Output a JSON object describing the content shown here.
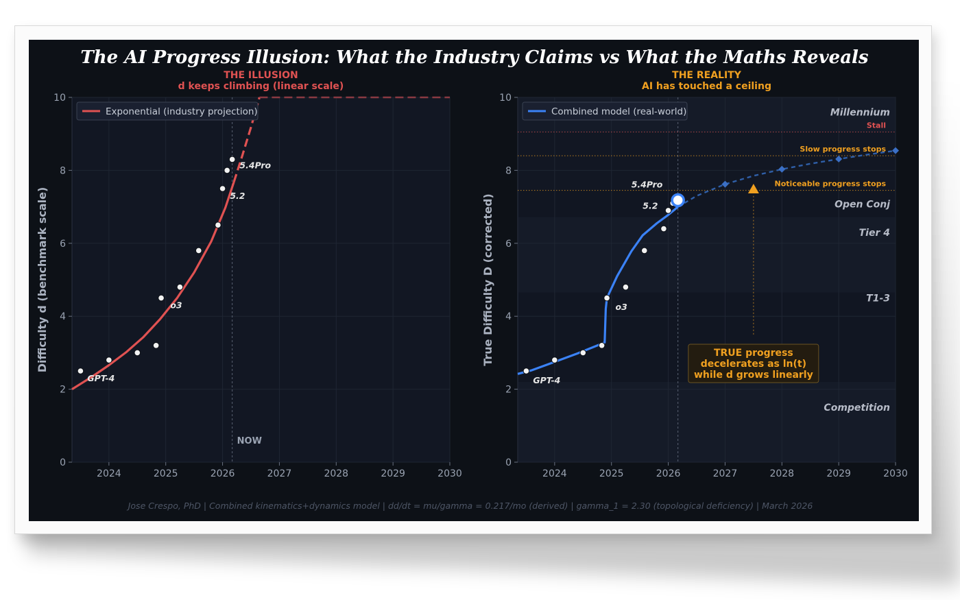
{
  "title": "The AI Progress Illusion: What the Industry Claims vs What the Maths Reveals",
  "footer": "Jose Crespo, PhD  |  Combined kinematics+dynamics model  |  dd/dt = mu/gamma = 0.217/mo (derived)  |  gamma_1 = 2.30 (topological deficiency)  |  March 2026",
  "colors": {
    "illusion": "#e05252",
    "reality": "#f0a020",
    "blue": "#3b82f6",
    "bg": "#0d1117",
    "axes": "#121723"
  },
  "chart_data": [
    {
      "type": "line",
      "subtitle_1": "THE ILLUSION",
      "subtitle_2": "d keeps climbing (linear scale)",
      "xlabel": "",
      "ylabel": "Difficulty d (benchmark scale)",
      "xlim": [
        2023.35,
        2030
      ],
      "ylim": [
        0,
        10
      ],
      "xticks": [
        2024,
        2025,
        2026,
        2027,
        2028,
        2029,
        2030
      ],
      "yticks": [
        0,
        2,
        4,
        6,
        8,
        10
      ],
      "legend": "top-left",
      "now_x": 2026.17,
      "now_label": "NOW",
      "series": [
        {
          "name": "Exponential (industry projection)",
          "solid_x": [
            2023.35,
            2023.7,
            2024.0,
            2024.3,
            2024.6,
            2024.9,
            2025.2,
            2025.5,
            2025.8,
            2026.05,
            2026.2
          ],
          "solid_y": [
            2.0,
            2.34,
            2.66,
            3.01,
            3.42,
            3.92,
            4.5,
            5.2,
            6.05,
            6.98,
            7.68
          ],
          "dashed_x": [
            2026.2,
            2026.35,
            2026.5,
            2026.65
          ],
          "dashed_y": [
            7.68,
            8.42,
            9.18,
            10.0
          ],
          "ceiling_x": [
            2026.65,
            2030
          ],
          "ceiling_y": [
            10,
            10
          ]
        }
      ],
      "points": {
        "x": [
          2023.5,
          2024.0,
          2024.5,
          2024.83,
          2024.92,
          2025.25,
          2025.58,
          2025.92,
          2026.0,
          2026.08,
          2026.17
        ],
        "y": [
          2.5,
          2.8,
          3.0,
          3.2,
          4.5,
          4.8,
          5.8,
          6.5,
          7.5,
          8.0,
          8.3
        ]
      },
      "annotations": [
        {
          "text": "GPT-4",
          "x": 2023.62,
          "y": 2.22
        },
        {
          "text": "o3",
          "x": 2025.08,
          "y": 4.22
        },
        {
          "text": "5.2",
          "x": 2026.13,
          "y": 7.22
        },
        {
          "text": "5.4Pro",
          "x": 2026.3,
          "y": 8.05
        }
      ]
    },
    {
      "type": "line",
      "subtitle_1": "THE REALITY",
      "subtitle_2": "AI has touched a ceiling",
      "xlabel": "",
      "ylabel": "True Difficulty D (corrected)",
      "xlim": [
        2023.35,
        2030
      ],
      "ylim": [
        0,
        10
      ],
      "xticks": [
        2024,
        2025,
        2026,
        2027,
        2028,
        2029,
        2030
      ],
      "yticks": [
        0,
        2,
        4,
        6,
        8,
        10
      ],
      "legend": "top-left",
      "now_x": 2026.17,
      "series": [
        {
          "name": "Combined model (real-world)",
          "solid_x": [
            2023.35,
            2023.6,
            2024.0,
            2024.4,
            2024.88,
            2024.9,
            2024.92,
            2025.1,
            2025.35,
            2025.55,
            2025.8,
            2026.0,
            2026.17
          ],
          "solid_y": [
            2.42,
            2.52,
            2.75,
            2.98,
            3.28,
            4.2,
            4.5,
            5.1,
            5.78,
            6.22,
            6.55,
            6.78,
            7.0
          ],
          "dashed_x": [
            2026.17,
            2026.5,
            2027.0,
            2027.5,
            2028.0,
            2028.5,
            2029.0,
            2029.5,
            2030.0
          ],
          "dashed_y": [
            7.0,
            7.3,
            7.62,
            7.85,
            8.03,
            8.18,
            8.31,
            8.43,
            8.54
          ],
          "markers_x": [
            2027,
            2028,
            2029,
            2030
          ],
          "markers_y": [
            7.62,
            8.03,
            8.31,
            8.54
          ]
        }
      ],
      "points": {
        "x": [
          2023.5,
          2024.0,
          2024.5,
          2024.83,
          2024.92,
          2025.25,
          2025.58,
          2025.92,
          2026.0,
          2026.08
        ],
        "y": [
          2.5,
          2.8,
          3.0,
          3.2,
          4.5,
          4.8,
          5.8,
          6.4,
          6.9,
          7.1
        ]
      },
      "now_point": {
        "x": 2026.17,
        "y": 7.18
      },
      "bands": [
        {
          "y0": 9.05,
          "y1": 10,
          "label": "Millennium",
          "label_y": 9.6
        },
        {
          "y0": 6.72,
          "y1": 7.45,
          "label": "Open Conj",
          "label_y": 7.08
        },
        {
          "y0": 4.65,
          "y1": 6.72,
          "label": "Tier 4",
          "label_y": 6.3
        },
        {
          "y0": 2.2,
          "y1": 4.65,
          "label": "T1-3",
          "label_y": 4.5
        },
        {
          "y0": 0,
          "y1": 2.2,
          "label": "Competition",
          "label_y": 1.5
        }
      ],
      "thresholds": [
        {
          "y": 9.05,
          "label": "Stall",
          "color": "#e05252"
        },
        {
          "y": 8.4,
          "label": "Slow progress stops",
          "color": "#f0a020"
        },
        {
          "y": 7.45,
          "label": "Noticeable progress stops",
          "color": "#f0a020"
        }
      ],
      "annotations": [
        {
          "text": "GPT-4",
          "x": 2023.62,
          "y": 2.16
        },
        {
          "text": "o3",
          "x": 2025.07,
          "y": 4.17
        },
        {
          "text": "5.2",
          "x": 2025.55,
          "y": 6.95
        },
        {
          "text": "5.4Pro",
          "x": 2025.35,
          "y": 7.53
        }
      ],
      "callout": {
        "lines": [
          "TRUE progress",
          "decelerates as ln(t)",
          "while d grows linearly"
        ],
        "arrow_x": 2027.5,
        "arrow_from_y": 3.5,
        "arrow_to_y": 7.5
      }
    }
  ]
}
